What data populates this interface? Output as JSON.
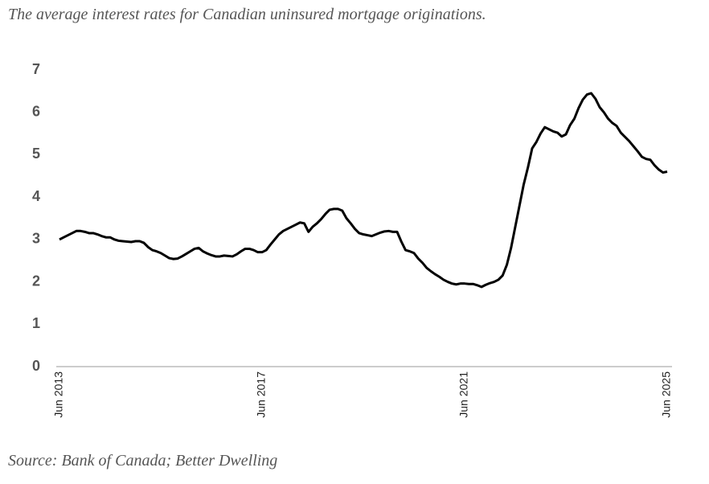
{
  "chart_data": {
    "type": "line",
    "title": "The average interest rates for Canadian uninsured mortgage originations.",
    "source": "Source: Bank of Canada; Better Dwelling",
    "categories": [
      "Jun 2013",
      null,
      null,
      null,
      null,
      null,
      null,
      null,
      null,
      null,
      null,
      null,
      null,
      null,
      null,
      null,
      null,
      null,
      null,
      null,
      null,
      null,
      null,
      null,
      null,
      null,
      null,
      null,
      null,
      null,
      null,
      null,
      null,
      null,
      null,
      null,
      null,
      null,
      null,
      null,
      null,
      null,
      null,
      null,
      null,
      null,
      null,
      null,
      "Jun 2017",
      null,
      null,
      null,
      null,
      null,
      null,
      null,
      null,
      null,
      null,
      null,
      null,
      null,
      null,
      null,
      null,
      null,
      null,
      null,
      null,
      null,
      null,
      null,
      null,
      null,
      null,
      null,
      null,
      null,
      null,
      null,
      null,
      null,
      null,
      null,
      null,
      null,
      null,
      null,
      null,
      null,
      null,
      null,
      null,
      null,
      null,
      null,
      "Jun 2021",
      null,
      null,
      null,
      null,
      null,
      null,
      null,
      null,
      null,
      null,
      null,
      null,
      null,
      null,
      null,
      null,
      null,
      null,
      null,
      null,
      null,
      null,
      null,
      null,
      null,
      null,
      null,
      null,
      null,
      null,
      null,
      null,
      null,
      null,
      null,
      null,
      null,
      null,
      null,
      null,
      null,
      null,
      null,
      null,
      null,
      null,
      null,
      "Jun 2025"
    ],
    "series": [
      {
        "color": "#000000",
        "values": [
          3.0,
          3.05,
          3.1,
          3.15,
          3.2,
          3.2,
          3.18,
          3.15,
          3.15,
          3.12,
          3.08,
          3.05,
          3.05,
          3.0,
          2.97,
          2.96,
          2.95,
          2.94,
          2.96,
          2.96,
          2.92,
          2.82,
          2.75,
          2.72,
          2.68,
          2.62,
          2.56,
          2.54,
          2.55,
          2.6,
          2.66,
          2.72,
          2.78,
          2.8,
          2.72,
          2.67,
          2.63,
          2.6,
          2.6,
          2.62,
          2.61,
          2.6,
          2.65,
          2.72,
          2.78,
          2.78,
          2.75,
          2.7,
          2.7,
          2.75,
          2.88,
          3.0,
          3.12,
          3.2,
          3.25,
          3.3,
          3.35,
          3.4,
          3.38,
          3.18,
          3.3,
          3.38,
          3.48,
          3.6,
          3.7,
          3.72,
          3.72,
          3.68,
          3.5,
          3.38,
          3.25,
          3.15,
          3.12,
          3.1,
          3.08,
          3.12,
          3.16,
          3.19,
          3.2,
          3.18,
          3.18,
          2.95,
          2.75,
          2.72,
          2.68,
          2.55,
          2.45,
          2.33,
          2.25,
          2.18,
          2.12,
          2.05,
          2.0,
          1.96,
          1.94,
          1.96,
          1.96,
          1.95,
          1.95,
          1.92,
          1.88,
          1.93,
          1.97,
          2.0,
          2.05,
          2.15,
          2.4,
          2.8,
          3.3,
          3.8,
          4.3,
          4.7,
          5.15,
          5.3,
          5.5,
          5.65,
          5.6,
          5.55,
          5.52,
          5.43,
          5.48,
          5.7,
          5.85,
          6.1,
          6.3,
          6.42,
          6.45,
          6.32,
          6.12,
          6.0,
          5.85,
          5.75,
          5.68,
          5.52,
          5.42,
          5.32,
          5.2,
          5.08,
          4.95,
          4.9,
          4.88,
          4.75,
          4.65,
          4.58,
          4.6
        ]
      }
    ],
    "ylim": [
      0,
      7
    ],
    "yticks": [
      0,
      1,
      2,
      3,
      4,
      5,
      6,
      7
    ],
    "grid": false
  }
}
